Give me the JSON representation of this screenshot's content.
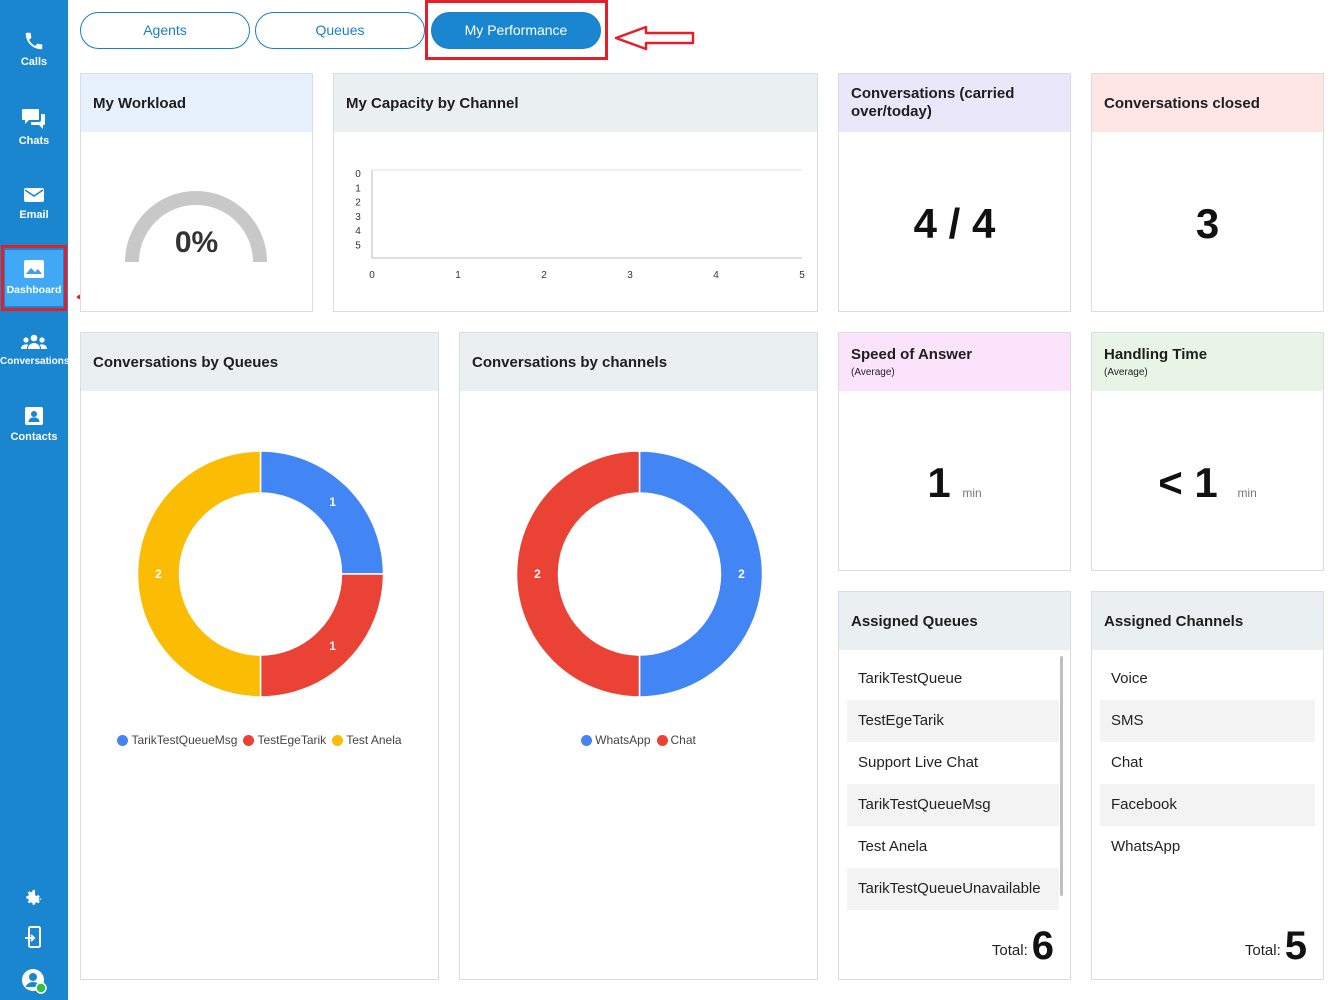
{
  "sidebar": {
    "items": [
      {
        "label": "Calls",
        "icon": "phone-icon"
      },
      {
        "label": "Chats",
        "icon": "chat-bubbles-icon"
      },
      {
        "label": "Email",
        "icon": "envelope-icon"
      },
      {
        "label": "Dashboard",
        "icon": "dashboard-image-icon"
      },
      {
        "label": "Conversations",
        "icon": "people-group-icon"
      },
      {
        "label": "Contacts",
        "icon": "contact-card-icon"
      }
    ],
    "bottom_icons": [
      "gear-icon",
      "logout-icon",
      "user-status-icon"
    ],
    "active": "Dashboard"
  },
  "tabs": {
    "agents": "Agents",
    "queues": "Queues",
    "performance": "My Performance",
    "active": "My Performance"
  },
  "workload": {
    "title": "My Workload",
    "value": "0%",
    "gauge_fraction": 0
  },
  "capacity": {
    "title": "My Capacity by Channel",
    "chart_data": {
      "type": "bar",
      "y_ticks": [
        "0",
        "1",
        "2",
        "3",
        "4",
        "5"
      ],
      "x_ticks": [
        "0",
        "1",
        "2",
        "3",
        "4",
        "5"
      ],
      "xlim": [
        0,
        5
      ],
      "series": []
    }
  },
  "carried": {
    "title": "Conversations (carried over/today)",
    "value": "4 / 4"
  },
  "closed": {
    "title": "Conversations closed",
    "value": "3"
  },
  "speed": {
    "title": "Speed of Answer",
    "sub": "(Average)",
    "value": "1",
    "unit": "min"
  },
  "handling": {
    "title": "Handling Time",
    "sub": "(Average)",
    "value": "< 1",
    "unit": "min"
  },
  "by_queues": {
    "title": "Conversations by Queues",
    "chart_data": {
      "type": "pie",
      "labels": [
        "TarikTestQueueMsg",
        "TestEgeTarik",
        "Test Anela"
      ],
      "values": [
        1,
        1,
        2
      ],
      "colors": [
        "#4285f4",
        "#ea4335",
        "#fbbc04"
      ],
      "donut": true
    }
  },
  "by_channels": {
    "title": "Conversations by channels",
    "chart_data": {
      "type": "pie",
      "labels": [
        "WhatsApp",
        "Chat"
      ],
      "values": [
        2,
        2
      ],
      "colors": [
        "#4285f4",
        "#ea4335"
      ],
      "donut": true
    }
  },
  "assigned_queues": {
    "title": "Assigned Queues",
    "items": [
      "TarikTestQueue",
      "TestEgeTarik",
      "Support Live Chat",
      "TarikTestQueueMsg",
      "Test Anela",
      "TarikTestQueueUnavailable"
    ],
    "total_label": "Total:",
    "total": "6"
  },
  "assigned_channels": {
    "title": "Assigned Channels",
    "items": [
      "Voice",
      "SMS",
      "Chat",
      "Facebook",
      "WhatsApp"
    ],
    "total_label": "Total:",
    "total": "5"
  }
}
